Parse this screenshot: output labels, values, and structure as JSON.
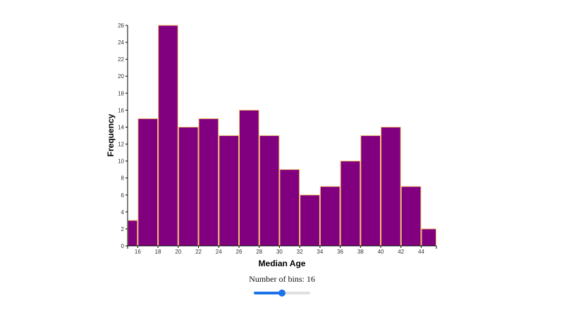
{
  "chart_data": {
    "type": "bar",
    "title": "",
    "xlabel": "Median Age",
    "ylabel": "Frequency",
    "bins": [
      {
        "x0": 15,
        "x1": 16,
        "count": 3
      },
      {
        "x0": 16,
        "x1": 18,
        "count": 15
      },
      {
        "x0": 18,
        "x1": 20,
        "count": 26
      },
      {
        "x0": 20,
        "x1": 22,
        "count": 14
      },
      {
        "x0": 22,
        "x1": 24,
        "count": 15
      },
      {
        "x0": 24,
        "x1": 26,
        "count": 13
      },
      {
        "x0": 26,
        "x1": 28,
        "count": 16
      },
      {
        "x0": 28,
        "x1": 30,
        "count": 13
      },
      {
        "x0": 30,
        "x1": 32,
        "count": 9
      },
      {
        "x0": 32,
        "x1": 34,
        "count": 6
      },
      {
        "x0": 34,
        "x1": 36,
        "count": 7
      },
      {
        "x0": 36,
        "x1": 38,
        "count": 10
      },
      {
        "x0": 38,
        "x1": 40,
        "count": 13
      },
      {
        "x0": 40,
        "x1": 42,
        "count": 14
      },
      {
        "x0": 42,
        "x1": 44,
        "count": 7
      },
      {
        "x0": 44,
        "x1": 45.5,
        "count": 2
      }
    ],
    "categories": [
      "15-16",
      "16-18",
      "18-20",
      "20-22",
      "22-24",
      "24-26",
      "26-28",
      "28-30",
      "30-32",
      "32-34",
      "34-36",
      "36-38",
      "38-40",
      "40-42",
      "42-44",
      "44-45.5"
    ],
    "values": [
      3,
      15,
      26,
      14,
      15,
      13,
      16,
      13,
      9,
      6,
      7,
      10,
      13,
      14,
      7,
      2
    ],
    "xlim": [
      15,
      45.5
    ],
    "ylim": [
      0,
      26
    ],
    "x_ticks": [
      16,
      18,
      20,
      22,
      24,
      26,
      28,
      30,
      32,
      34,
      36,
      38,
      40,
      42,
      44
    ],
    "y_ticks": [
      0,
      2,
      4,
      6,
      8,
      10,
      12,
      14,
      16,
      18,
      20,
      22,
      24,
      26
    ],
    "grid": false,
    "legend": null,
    "colors": {
      "bar_fill": "#800080",
      "bar_stroke": "#f2c26b"
    }
  },
  "controls": {
    "bins_label": "Number of bins: 16",
    "bins_value": 16,
    "slider_min": 1,
    "slider_max": 36,
    "slider_percent": 50
  }
}
